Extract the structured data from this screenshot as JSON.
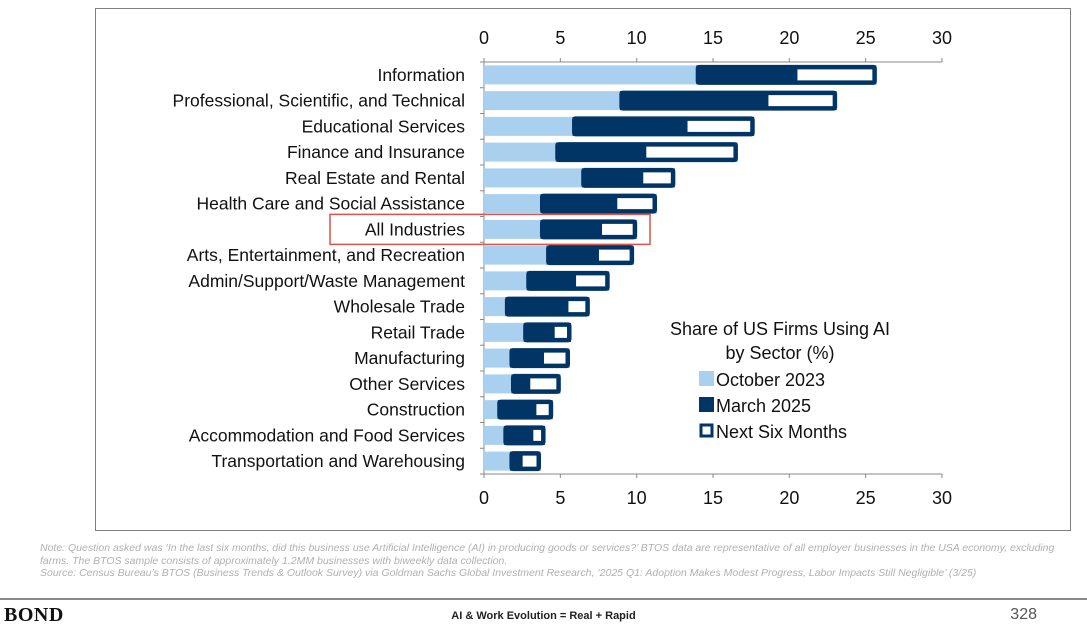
{
  "chart_data": {
    "type": "bar",
    "orientation": "horizontal",
    "title": "Share of US Firms Using AI by Sector (%)",
    "title_lines": [
      "Share of US Firms Using AI",
      "by Sector (%)"
    ],
    "xlim": [
      0,
      30
    ],
    "xticks": [
      0,
      5,
      10,
      15,
      20,
      25,
      30
    ],
    "legend_position": "bottom-right",
    "highlighted_category": "All Industries",
    "categories": [
      "Information",
      "Professional, Scientific, and Technical",
      "Educational Services",
      "Finance and Insurance",
      "Real Estate and Rental",
      "Health Care and Social Assistance",
      "All Industries",
      "Arts, Entertainment, and Recreation",
      "Admin/Support/Waste Management",
      "Wholesale Trade",
      "Retail Trade",
      "Manufacturing",
      "Other Services",
      "Construction",
      "Accommodation and Food Services",
      "Transportation and Warehousing"
    ],
    "series": [
      {
        "name": "October 2023",
        "color": "#a9d0ee",
        "values": [
          13.9,
          8.9,
          5.8,
          4.7,
          6.4,
          3.7,
          3.7,
          4.1,
          2.8,
          1.4,
          2.6,
          1.7,
          1.8,
          0.9,
          1.3,
          1.7
        ]
      },
      {
        "name": "March 2025",
        "color": "#003565",
        "values": [
          20.4,
          18.5,
          13.2,
          10.5,
          10.3,
          8.6,
          7.6,
          7.4,
          5.9,
          5.4,
          4.5,
          3.8,
          2.9,
          3.3,
          3.1,
          2.4
        ]
      },
      {
        "name": "Next Six Months",
        "color": "#ffffff",
        "values": [
          25.7,
          23.1,
          17.7,
          16.6,
          12.5,
          11.3,
          10.0,
          9.8,
          8.2,
          6.9,
          5.7,
          5.6,
          5.0,
          4.5,
          4.0,
          3.7
        ]
      }
    ]
  },
  "note": "Note: Question asked was ‘In the last six months, did this business use Artificial Intelligence (AI) in producing goods or services?’ BTOS data are representative of all employer businesses in the USA economy, excluding farms. The BTOS sample consists of approximately 1.2MM businesses with biweekly data collection.",
  "source": "Source: Census Bureau’s BTOS (Business Trends & Outlook Survey) via Goldman Sachs Global Investment Research, ‘2025 Q1: Adoption Makes Modest Progress, Labor Impacts Still Negligible’ (3/25)",
  "footer": {
    "logo": "BOND",
    "title": "AI & Work Evolution = Real + Rapid",
    "page": "328"
  }
}
